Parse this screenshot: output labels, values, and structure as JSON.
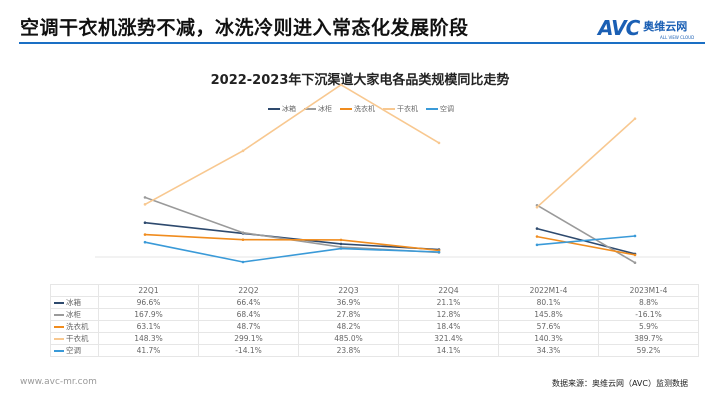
{
  "header": {
    "title": "空调干衣机涨势不减，冰洗冷则进入常态化发展阶段",
    "logo_mark": "AVC",
    "logo_cn": "奥维云网",
    "logo_en": "ALL VIEW CLOUD"
  },
  "chart_data": {
    "type": "line",
    "title": "2022-2023年下沉渠道大家电各品类规模同比走势",
    "categories": [
      "22Q1",
      "22Q2",
      "22Q3",
      "22Q4",
      "2022M1-4",
      "2023M1-4"
    ],
    "unit": "%",
    "series": [
      {
        "name": "冰箱",
        "color": "#2e4a6e",
        "values": [
          96.6,
          66.4,
          36.9,
          21.1,
          80.1,
          8.8
        ],
        "labels": [
          "96.6%",
          "66.4%",
          "36.9%",
          "21.1%",
          "80.1%",
          "8.8%"
        ]
      },
      {
        "name": "冰柜",
        "color": "#9a9a9a",
        "values": [
          167.9,
          68.4,
          27.8,
          12.8,
          145.8,
          -16.1
        ],
        "labels": [
          "167.9%",
          "68.4%",
          "27.8%",
          "12.8%",
          "145.8%",
          "-16.1%"
        ]
      },
      {
        "name": "洗衣机",
        "color": "#f08c1e",
        "values": [
          63.1,
          48.7,
          48.2,
          18.4,
          57.6,
          5.9
        ],
        "labels": [
          "63.1%",
          "48.7%",
          "48.2%",
          "18.4%",
          "57.6%",
          "5.9%"
        ]
      },
      {
        "name": "干衣机",
        "color": "#f8c890",
        "values": [
          148.3,
          299.1,
          485.0,
          321.4,
          140.3,
          389.7
        ],
        "labels": [
          "148.3%",
          "299.1%",
          "485.0%",
          "321.4%",
          "140.3%",
          "389.7%"
        ]
      },
      {
        "name": "空调",
        "color": "#3a9ad8",
        "values": [
          41.7,
          -14.1,
          23.8,
          14.1,
          34.3,
          59.2
        ],
        "labels": [
          "41.7%",
          "-14.1%",
          "23.8%",
          "14.1%",
          "34.3%",
          "59.2%"
        ]
      }
    ],
    "segments": [
      [
        0,
        3
      ],
      [
        4,
        5
      ]
    ],
    "legend": "top",
    "grid": false
  },
  "footer": {
    "website": "www.avc-mr.com",
    "source": "数据来源：奥维云网（AVC）监测数据"
  }
}
